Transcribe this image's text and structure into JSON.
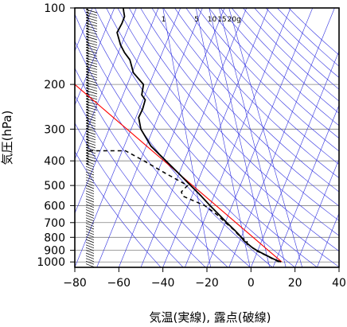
{
  "chart_data": {
    "type": "line",
    "xlabel": "気温(実線), 露点(破線)",
    "ylabel": "気圧(hPa)",
    "xlim": [
      -80,
      40
    ],
    "ylim": [
      1050,
      100
    ],
    "y_scale": "log",
    "x_ticks": [
      "−80",
      "−60",
      "−40",
      "−20",
      "0",
      "20",
      "40"
    ],
    "x_tick_values": [
      -80,
      -60,
      -40,
      -20,
      0,
      20,
      40
    ],
    "y_ticks": [
      "100",
      "200",
      "300",
      "400",
      "500",
      "600",
      "700",
      "800",
      "900",
      "1000"
    ],
    "y_tick_values": [
      100,
      200,
      300,
      400,
      500,
      600,
      700,
      800,
      900,
      1000
    ],
    "mixing_ratio_labels": [
      "1",
      "5",
      "10",
      "15",
      "20g"
    ],
    "colors": {
      "temperature": "#000000",
      "dewpoint": "#000000",
      "reference": "#ff0000",
      "isopleths": "#3030e0",
      "grid": "#808080"
    },
    "series": [
      {
        "style": "solid",
        "pressure": [
          1000,
          975,
          950,
          925,
          900,
          875,
          850,
          825,
          800,
          775,
          750,
          700,
          650,
          600,
          550,
          500,
          450,
          400,
          350,
          300,
          270,
          250,
          230,
          220,
          200,
          180,
          160,
          150,
          140,
          125,
          115,
          108,
          103,
          100
        ],
        "values": [
          13.6,
          10.4,
          7.8,
          5.2,
          2.6,
          0.4,
          -1.4,
          -3.2,
          -4.4,
          -5.8,
          -7.4,
          -11.0,
          -14.6,
          -18.6,
          -22.6,
          -27.4,
          -32.6,
          -38.6,
          -45.4,
          -50.0,
          -51.0,
          -49.2,
          -48.0,
          -49.6,
          -48.8,
          -53.4,
          -55.0,
          -57.4,
          -59.2,
          -60.8,
          -58.6,
          -57.4,
          -57.8,
          -58.0
        ]
      },
      {
        "style": "dashed",
        "pressure": [
          1000,
          975,
          950,
          925,
          900,
          875,
          850,
          825,
          800,
          775,
          750,
          700,
          650,
          600,
          550,
          530,
          500,
          450,
          400,
          365,
          365
        ],
        "values": [
          12.8,
          10.0,
          7.6,
          4.8,
          2.0,
          0.4,
          -1.8,
          -1.8,
          -4.6,
          -6.2,
          -7.6,
          -11.6,
          -15.6,
          -21.0,
          -31.0,
          -31.6,
          -28.8,
          -38.4,
          -48.6,
          -57.0,
          -74.0
        ]
      }
    ]
  }
}
